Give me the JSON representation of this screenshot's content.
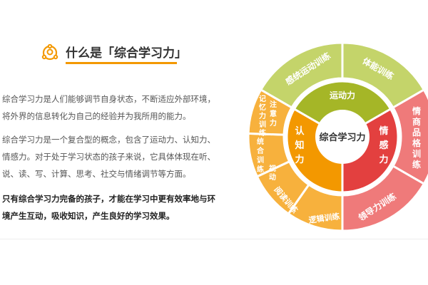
{
  "header": {
    "title": "什么是「综合学习力」",
    "icon": "network-circle-icon",
    "accent": "#f39800"
  },
  "paragraphs": [
    {
      "lines": [
        "综合学习力是人们能够调节自身状态，不断适应外部环境，",
        "将外界的信息转化为自己的经验并为我所用的能力。"
      ]
    },
    {
      "lines": [
        "综合学习力是一个复合型的概念，包含了运动力、认知力、",
        "情感力。对于处于学习状态的孩子来说，它具体体现在听、",
        "说、读、写、计算、思考、社交与情绪调节等方面。"
      ]
    },
    {
      "lines": [
        "只有综合学习力完备的孩子，才能在学习中更有效率地与环",
        "境产生互动，吸收知识，产生良好的学习效果。"
      ]
    }
  ],
  "wheel": {
    "center": "综合学习力",
    "core": [
      {
        "label": "运动力",
        "color": "#a5b627"
      },
      {
        "label": "情感力",
        "color": "#e3403f"
      },
      {
        "label": "认知力",
        "color": "#f39800"
      }
    ],
    "outer": [
      {
        "label": "感统运动训练",
        "color": "#c4d46a"
      },
      {
        "label": "体能训练",
        "color": "#c4d46a"
      },
      {
        "label": "情商品格训练",
        "color": "#ef7a7a"
      },
      {
        "label": "领导力训练",
        "color": "#ef7a7a"
      },
      {
        "label": "逻辑训练",
        "color": "#f7b13d"
      },
      {
        "label": "阅读训练",
        "color": "#f7b13d"
      },
      {
        "label": "视动统合训练",
        "color": "#f7b13d"
      },
      {
        "label": "注意力记忆力训练",
        "color": "#f7b13d"
      }
    ]
  }
}
